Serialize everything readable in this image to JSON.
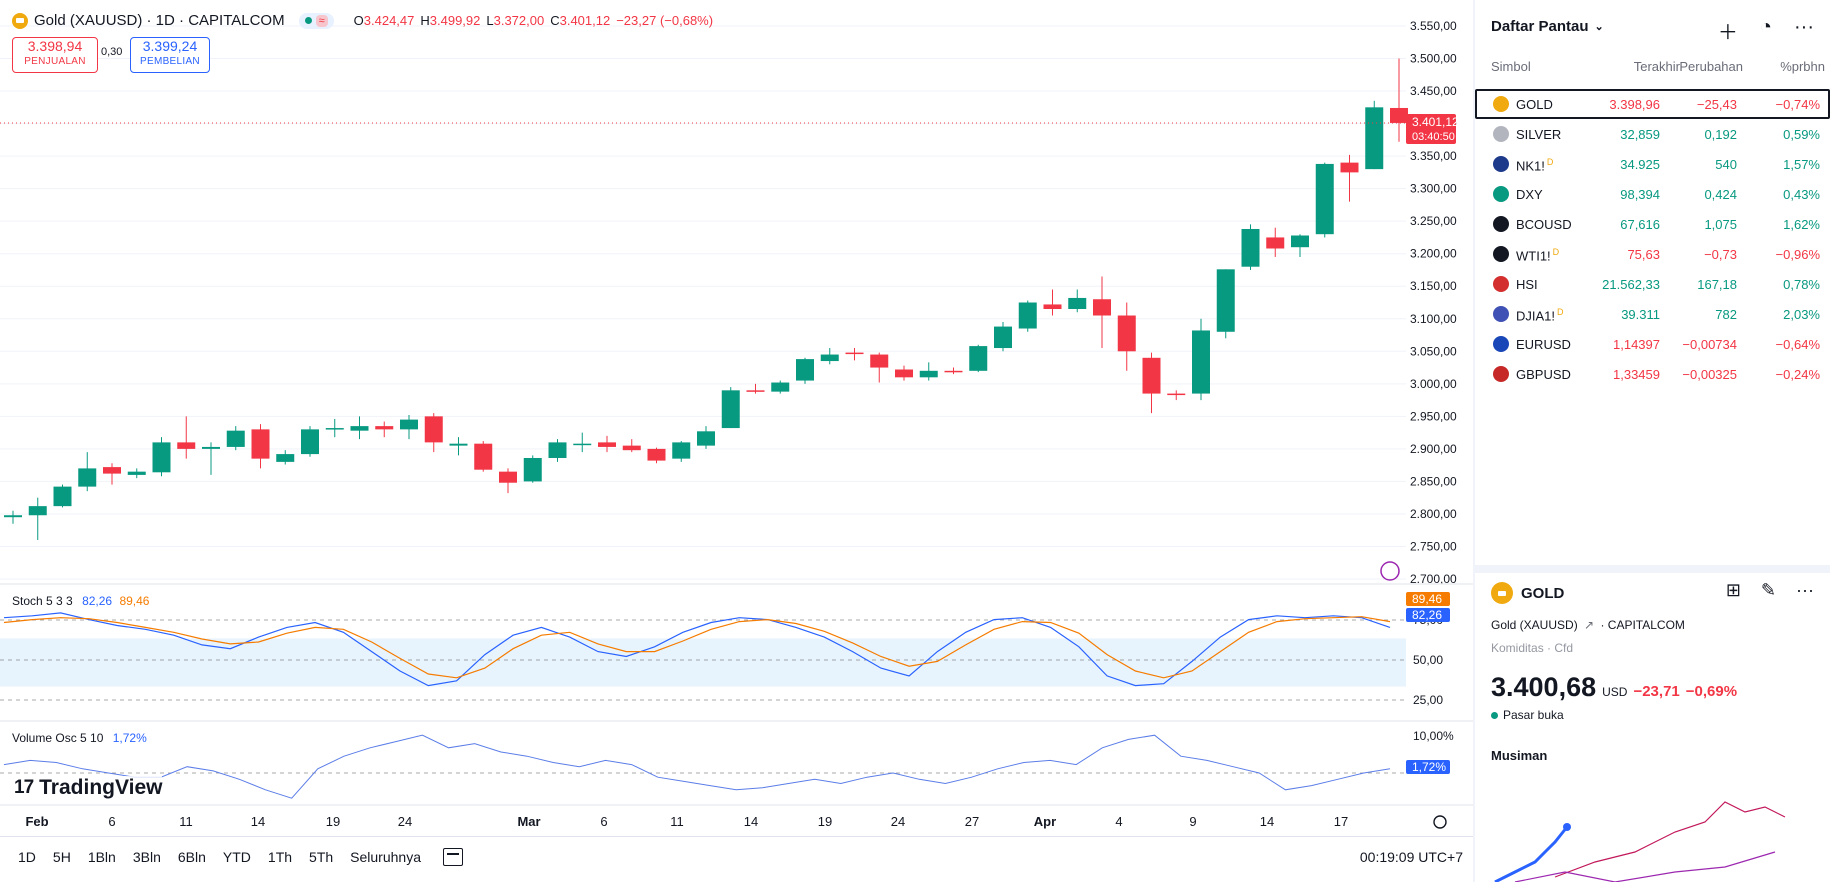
{
  "header": {
    "title": "Gold (XAUUSD) · 1D · CAPITALCOM",
    "ohlc": [
      {
        "k": "O",
        "v": "3.424,47"
      },
      {
        "k": "H",
        "v": "3.499,92"
      },
      {
        "k": "L",
        "v": "3.372,00"
      },
      {
        "k": "C",
        "v": "3.401,12"
      },
      {
        "k": "",
        "v": "−23,27 (−0,68%)"
      }
    ],
    "wave_icon": "≈"
  },
  "trade": {
    "sell_price": "3.398,94",
    "sell_label": "PENJUALAN",
    "spread": "0,30",
    "buy_price": "3.399,24",
    "buy_label": "PEMBELIAN"
  },
  "price_axis": {
    "ticks": [
      "3.550,00",
      "3.500,00",
      "3.450,00",
      "3.400,00",
      "3.350,00",
      "3.300,00",
      "3.250,00",
      "3.200,00",
      "3.150,00",
      "3.100,00",
      "3.050,00",
      "3.000,00",
      "2.950,00",
      "2.900,00",
      "2.850,00",
      "2.800,00",
      "2.750,00",
      "2.700,00"
    ],
    "last_price": "3.401,12",
    "countdown": "03:40:50"
  },
  "colors": {
    "up": "#089981",
    "down": "#f23645",
    "stoch_k": "#2962ff",
    "stoch_d": "#f57c00",
    "vol_osc": "#5b7de8"
  },
  "chart_data": {
    "type": "candlestick",
    "symbol": "XAUUSD",
    "ylim": [
      2700,
      3550
    ],
    "candles": [
      [
        2795,
        2805,
        2785,
        2798
      ],
      [
        2798,
        2825,
        2760,
        2812
      ],
      [
        2812,
        2845,
        2810,
        2842
      ],
      [
        2842,
        2895,
        2835,
        2870
      ],
      [
        2872,
        2878,
        2845,
        2862
      ],
      [
        2860,
        2870,
        2855,
        2865
      ],
      [
        2864,
        2918,
        2858,
        2910
      ],
      [
        2910,
        2950,
        2885,
        2900
      ],
      [
        2900,
        2910,
        2860,
        2903
      ],
      [
        2903,
        2935,
        2898,
        2928
      ],
      [
        2930,
        2938,
        2870,
        2885
      ],
      [
        2880,
        2898,
        2876,
        2892
      ],
      [
        2892,
        2935,
        2888,
        2930
      ],
      [
        2931,
        2946,
        2918,
        2932
      ],
      [
        2928,
        2950,
        2915,
        2935
      ],
      [
        2935,
        2942,
        2918,
        2930
      ],
      [
        2930,
        2952,
        2915,
        2945
      ],
      [
        2950,
        2955,
        2895,
        2910
      ],
      [
        2905,
        2918,
        2890,
        2908
      ],
      [
        2908,
        2912,
        2865,
        2868
      ],
      [
        2865,
        2870,
        2832,
        2848
      ],
      [
        2850,
        2890,
        2848,
        2886
      ],
      [
        2886,
        2915,
        2880,
        2910
      ],
      [
        2906,
        2925,
        2895,
        2908
      ],
      [
        2910,
        2920,
        2895,
        2903
      ],
      [
        2905,
        2915,
        2895,
        2898
      ],
      [
        2900,
        2902,
        2878,
        2882
      ],
      [
        2885,
        2912,
        2880,
        2910
      ],
      [
        2905,
        2935,
        2900,
        2927
      ],
      [
        2932,
        2995,
        2932,
        2990
      ],
      [
        2990,
        3000,
        2985,
        2988
      ],
      [
        2988,
        3005,
        2985,
        3002
      ],
      [
        3005,
        3040,
        3000,
        3038
      ],
      [
        3035,
        3055,
        3030,
        3045
      ],
      [
        3048,
        3055,
        3036,
        3046
      ],
      [
        3045,
        3048,
        3002,
        3025
      ],
      [
        3022,
        3028,
        3005,
        3010
      ],
      [
        3010,
        3033,
        3005,
        3020
      ],
      [
        3020,
        3025,
        3015,
        3018
      ],
      [
        3020,
        3060,
        3018,
        3058
      ],
      [
        3055,
        3095,
        3050,
        3088
      ],
      [
        3085,
        3128,
        3080,
        3125
      ],
      [
        3122,
        3145,
        3105,
        3115
      ],
      [
        3115,
        3145,
        3110,
        3132
      ],
      [
        3130,
        3165,
        3055,
        3105
      ],
      [
        3105,
        3125,
        3020,
        3050
      ],
      [
        3040,
        3048,
        2955,
        2985
      ],
      [
        2985,
        2990,
        2975,
        2984
      ],
      [
        2985,
        3100,
        2975,
        3082
      ],
      [
        3080,
        3176,
        3070,
        3176
      ],
      [
        3180,
        3245,
        3175,
        3238
      ],
      [
        3225,
        3240,
        3195,
        3208
      ],
      [
        3210,
        3230,
        3195,
        3228
      ],
      [
        3230,
        3340,
        3225,
        3338
      ],
      [
        3340,
        3352,
        3280,
        3325
      ],
      [
        3330,
        3435,
        3330,
        3425
      ],
      [
        3424,
        3500,
        3372,
        3401
      ]
    ],
    "x_tick_labels": [
      "Feb",
      "6",
      "11",
      "14",
      "19",
      "24",
      "Mar",
      "6",
      "11",
      "14",
      "19",
      "24",
      "27",
      "Apr",
      "4",
      "9",
      "14",
      "17"
    ],
    "indicators": {
      "stoch": {
        "label": "Stoch 5 3 3",
        "k": "82,26",
        "d": "89,46",
        "levels": [
          "75,00",
          "50,00",
          "25,00"
        ]
      },
      "volume_osc": {
        "label": "Volume Osc 5 10",
        "value": "1,72%",
        "level": "10,00%"
      }
    }
  },
  "range_buttons": [
    "1D",
    "5H",
    "1Bln",
    "3Bln",
    "6Bln",
    "YTD",
    "1Th",
    "5Th",
    "Seluruhnya"
  ],
  "clock": "00:19:09 UTC+7",
  "watchlist": {
    "title": "Daftar Pantau",
    "columns": [
      "Simbol",
      "Terakhir",
      "Perubahan",
      "%prbhn"
    ],
    "rows": [
      {
        "sym": "GOLD",
        "last": "3.398,96",
        "chg": "−25,43",
        "pct": "−0,74%",
        "dir": "neg",
        "icon": "#f0a90e",
        "sup": "",
        "sel": true
      },
      {
        "sym": "SILVER",
        "last": "32,859",
        "chg": "0,192",
        "pct": "0,59%",
        "dir": "pos",
        "icon": "#b2b5be",
        "sup": ""
      },
      {
        "sym": "NK1!",
        "last": "34.925",
        "chg": "540",
        "pct": "1,57%",
        "dir": "pos",
        "icon": "#1e3a8a",
        "sup": "D"
      },
      {
        "sym": "DXY",
        "last": "98,394",
        "chg": "0,424",
        "pct": "0,43%",
        "dir": "pos",
        "icon": "#089981",
        "sup": ""
      },
      {
        "sym": "BCOUSD",
        "last": "67,616",
        "chg": "1,075",
        "pct": "1,62%",
        "dir": "pos",
        "icon": "#131722",
        "sup": ""
      },
      {
        "sym": "WTI1!",
        "last": "75,63",
        "chg": "−0,73",
        "pct": "−0,96%",
        "dir": "neg",
        "icon": "#131722",
        "sup": "D"
      },
      {
        "sym": "HSI",
        "last": "21.562,33",
        "chg": "167,18",
        "pct": "0,78%",
        "dir": "pos",
        "icon": "#d32f2f",
        "sup": ""
      },
      {
        "sym": "DJIA1!",
        "last": "39.311",
        "chg": "782",
        "pct": "2,03%",
        "dir": "pos",
        "icon": "#3f51b5",
        "sup": "D"
      },
      {
        "sym": "EURUSD",
        "last": "1,14397",
        "chg": "−0,00734",
        "pct": "−0,64%",
        "dir": "neg",
        "icon": "#1a47b8",
        "sup": ""
      },
      {
        "sym": "GBPUSD",
        "last": "1,33459",
        "chg": "−0,00325",
        "pct": "−0,24%",
        "dir": "neg",
        "icon": "#c62828",
        "sup": ""
      }
    ]
  },
  "detail": {
    "symbol": "GOLD",
    "name": "Gold (XAUUSD)",
    "exchange": "CAPITALCOM",
    "category": "Komiditas · Cfd",
    "price": "3.400,68",
    "currency": "USD",
    "change": "−23,71",
    "change_pct": "−0,69%",
    "status": "Pasar buka",
    "seasonal_title": "Musiman"
  }
}
